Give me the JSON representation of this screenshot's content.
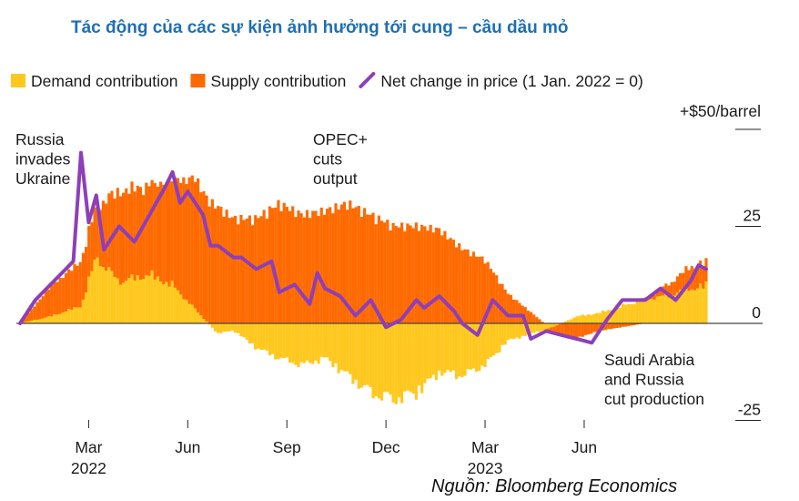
{
  "title": "Tác động của các sự kiện ảnh hưởng tới cung – cầu dầu mỏ",
  "source": "Nguồn: Bloomberg Economics",
  "chart_data": {
    "type": "bar",
    "legend": [
      {
        "label": "Demand contribution",
        "color": "#ffc81e",
        "marker": "square"
      },
      {
        "label": "Supply contribution",
        "color": "#ff6a00",
        "marker": "square"
      },
      {
        "label": "Net change in price (1 Jan. 2022 = 0)",
        "color": "#8e3fb8",
        "marker": "line"
      }
    ],
    "legend_placement": "top",
    "y_unit_label": "+$50/barrel",
    "ylim": [
      -25,
      50
    ],
    "y_ticks": [
      "25",
      "0",
      "-25"
    ],
    "x_ticks": [
      {
        "label": "Mar",
        "year": "2022",
        "week": 9
      },
      {
        "label": "Jun",
        "year": "",
        "week": 22
      },
      {
        "label": "Sep",
        "year": "",
        "week": 35
      },
      {
        "label": "Dec",
        "year": "",
        "week": 48
      },
      {
        "label": "Mar",
        "year": "2023",
        "week": 61
      },
      {
        "label": "Jun",
        "year": "",
        "week": 74
      }
    ],
    "annotations": [
      {
        "lines": [
          "Russia",
          "invades",
          "Ukraine"
        ],
        "week": 8
      },
      {
        "lines": [
          "OPEC+",
          "cuts",
          "output"
        ],
        "week": 40
      },
      {
        "lines": [
          "Saudi Arabia",
          "and Russia",
          "cut production"
        ],
        "week": 74
      }
    ],
    "series": [
      {
        "name": "Demand contribution",
        "week": [
          0,
          4,
          8,
          10,
          13,
          17,
          20,
          23,
          26,
          28,
          31,
          34,
          37,
          40,
          43,
          46,
          49,
          52,
          55,
          58,
          61,
          64,
          67,
          70,
          73,
          76,
          79,
          82,
          85,
          88,
          90
        ],
        "values": [
          0,
          2,
          5,
          19,
          12,
          14,
          11,
          4,
          -3,
          -2,
          -7,
          -10,
          -12,
          -10,
          -15,
          -20,
          -22,
          -20,
          -14,
          -15,
          -12,
          -5,
          -3,
          -1,
          2,
          3,
          5,
          7,
          8,
          10,
          11
        ]
      },
      {
        "name": "Supply contribution",
        "week": [
          0,
          4,
          8,
          10,
          13,
          17,
          20,
          23,
          26,
          28,
          31,
          34,
          37,
          40,
          43,
          46,
          49,
          52,
          55,
          58,
          61,
          64,
          67,
          70,
          73,
          76,
          79,
          82,
          85,
          88,
          90
        ],
        "values": [
          0,
          8,
          12,
          14,
          24,
          24,
          28,
          35,
          31,
          28,
          28,
          32,
          29,
          30,
          32,
          29,
          26,
          26,
          25,
          20,
          17,
          8,
          3,
          -2,
          -4,
          -2,
          -1,
          0,
          3,
          6,
          6
        ]
      },
      {
        "name": "Net change in price (1 Jan. 2022 = 0)",
        "week": [
          0,
          2,
          4,
          6,
          7,
          8,
          9,
          10,
          11,
          13,
          15,
          17,
          19,
          20,
          21,
          22,
          24,
          25,
          26,
          28,
          29,
          31,
          33,
          34,
          36,
          38,
          39,
          40,
          42,
          44,
          46,
          48,
          50,
          52,
          53,
          55,
          57,
          58,
          60,
          62,
          64,
          66,
          67,
          69,
          71,
          73,
          75,
          77,
          79,
          82,
          84,
          86,
          88,
          89,
          90
        ],
        "values": [
          0,
          6,
          10,
          14,
          16,
          44,
          26,
          33,
          19,
          25,
          21,
          28,
          35,
          39,
          31,
          34,
          28,
          20,
          20,
          17,
          17,
          14,
          16,
          8,
          10,
          5,
          13,
          9,
          7,
          2,
          6,
          -1,
          1,
          6,
          4,
          7,
          3,
          0,
          -3,
          6,
          2,
          2,
          -4,
          -2,
          -3,
          -4,
          -5,
          1,
          6,
          6,
          9,
          6,
          11,
          15,
          14
        ]
      }
    ]
  }
}
